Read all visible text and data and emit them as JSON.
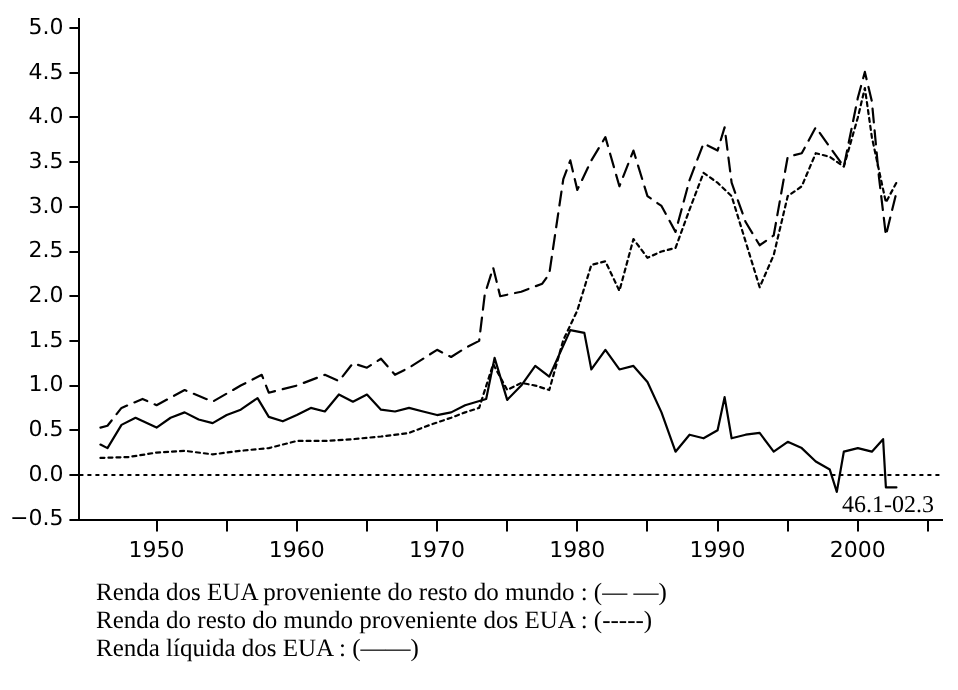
{
  "chart_data": {
    "type": "line",
    "xlim": [
      1944.5,
      2006
    ],
    "ylim": [
      -0.5,
      5.1
    ],
    "xticks": [
      1950,
      {
        "value": 1955,
        "label": null
      },
      1960,
      {
        "value": 1965,
        "label": null
      },
      1970,
      {
        "value": 1975,
        "label": null
      },
      1980,
      {
        "value": 1985,
        "label": null
      },
      1990,
      {
        "value": 1995,
        "label": null
      },
      2000,
      {
        "value": 2005,
        "label": null
      }
    ],
    "yticks": [
      {
        "value": -0.5,
        "label": "−0.5"
      },
      {
        "value": 0,
        "label": "0.0"
      },
      {
        "value": 0.5,
        "label": "0.5"
      },
      {
        "value": 1,
        "label": "1.0"
      },
      {
        "value": 1.5,
        "label": "1.5"
      },
      {
        "value": 2,
        "label": "2.0"
      },
      {
        "value": 2.5,
        "label": "2.5"
      },
      {
        "value": 3,
        "label": "3.0"
      },
      {
        "value": 3.5,
        "label": "3.5"
      },
      {
        "value": 4,
        "label": "4.0"
      },
      {
        "value": 4.5,
        "label": "4.5"
      },
      {
        "value": 5,
        "label": "5.0"
      }
    ],
    "grid": false,
    "legend": false,
    "marker": "none",
    "series": [
      {
        "color": "#000000",
        "line_style": "dashed",
        "x": [
          1946,
          1946.5,
          1947.5,
          1949,
          1950,
          1952,
          1954,
          1956,
          1957.5,
          1958,
          1960,
          1962,
          1963,
          1964,
          1965,
          1966,
          1967,
          1968,
          1970,
          1971,
          1972,
          1973,
          1973.4,
          1974,
          1974.5,
          1976,
          1977.5,
          1978,
          1979,
          1979.5,
          1980,
          1981,
          1982,
          1983,
          1984,
          1985,
          1986,
          1987,
          1988,
          1989,
          1990,
          1990.5,
          1991,
          1992,
          1993,
          1994,
          1995,
          1996,
          1997,
          1998,
          1999,
          2000,
          2000.5,
          2001,
          2001.5,
          2002,
          2002.75
        ],
        "values": [
          0.53,
          0.55,
          0.75,
          0.85,
          0.78,
          0.95,
          0.82,
          1.0,
          1.12,
          0.92,
          1.0,
          1.12,
          1.05,
          1.25,
          1.2,
          1.3,
          1.12,
          1.2,
          1.4,
          1.32,
          1.42,
          1.5,
          2.02,
          2.32,
          2.0,
          2.05,
          2.14,
          2.25,
          3.31,
          3.52,
          3.19,
          3.52,
          3.78,
          3.23,
          3.63,
          3.12,
          3.01,
          2.72,
          3.3,
          3.71,
          3.63,
          3.89,
          3.27,
          2.83,
          2.57,
          2.68,
          3.56,
          3.6,
          3.89,
          3.67,
          3.45,
          4.22,
          4.51,
          4.18,
          3.34,
          2.68,
          3.16
        ]
      },
      {
        "color": "#000000",
        "line_style": "dotted",
        "x": [
          1946,
          1948,
          1950,
          1952,
          1954,
          1956,
          1958,
          1960,
          1962,
          1964,
          1966,
          1968,
          1969.5,
          1971,
          1972,
          1973,
          1974,
          1975,
          1976,
          1977,
          1978,
          1979,
          1980,
          1981,
          1982,
          1983,
          1984,
          1985,
          1986,
          1987,
          1988,
          1989,
          1990,
          1991,
          1992,
          1993,
          1994,
          1995,
          1996,
          1997,
          1998,
          1999,
          2000,
          2000.5,
          2001,
          2002,
          2002.75
        ],
        "values": [
          0.19,
          0.2,
          0.25,
          0.27,
          0.23,
          0.27,
          0.3,
          0.38,
          0.38,
          0.4,
          0.43,
          0.47,
          0.56,
          0.64,
          0.7,
          0.75,
          1.24,
          0.95,
          1.03,
          1.0,
          0.95,
          1.51,
          1.84,
          2.35,
          2.39,
          2.06,
          2.64,
          2.43,
          2.5,
          2.54,
          2.97,
          3.38,
          3.27,
          3.12,
          2.61,
          2.1,
          2.46,
          3.12,
          3.23,
          3.6,
          3.56,
          3.45,
          4.0,
          4.33,
          3.78,
          3.05,
          3.27
        ]
      },
      {
        "color": "#000000",
        "line_style": "solid",
        "x": [
          1946,
          1946.5,
          1947.5,
          1948.5,
          1950,
          1951,
          1952,
          1953,
          1954,
          1955,
          1956,
          1957.2,
          1958,
          1959,
          1960,
          1961,
          1962,
          1963,
          1964,
          1965,
          1966,
          1967,
          1968,
          1969,
          1970,
          1971,
          1972,
          1973.5,
          1974.1,
          1975,
          1976,
          1977,
          1978,
          1979.5,
          1980.5,
          1981,
          1982,
          1983,
          1984,
          1985,
          1986,
          1987,
          1988,
          1989,
          1990,
          1990.5,
          1991,
          1992,
          1993,
          1994,
          1995,
          1996,
          1997,
          1998,
          1998.5,
          1999,
          2000,
          2001,
          2001.8,
          2002,
          2002.75
        ],
        "values": [
          0.34,
          0.3,
          0.56,
          0.64,
          0.53,
          0.64,
          0.7,
          0.62,
          0.58,
          0.67,
          0.73,
          0.86,
          0.65,
          0.6,
          0.67,
          0.75,
          0.71,
          0.9,
          0.82,
          0.9,
          0.73,
          0.71,
          0.75,
          0.71,
          0.67,
          0.7,
          0.78,
          0.85,
          1.31,
          0.84,
          1.0,
          1.22,
          1.1,
          1.62,
          1.59,
          1.18,
          1.4,
          1.18,
          1.22,
          1.04,
          0.7,
          0.26,
          0.45,
          0.41,
          0.5,
          0.87,
          0.41,
          0.45,
          0.47,
          0.26,
          0.37,
          0.3,
          0.15,
          0.06,
          -0.19,
          0.26,
          0.3,
          0.26,
          0.4,
          -0.14,
          -0.14
        ]
      }
    ],
    "ref_lines": [
      {
        "axis": "y",
        "value": 0,
        "line_style": "dotted",
        "color": "#000000"
      }
    ],
    "annotations": [
      "46.1-02.3",
      "Renda dos EUA proveniente do resto do mundo : (— —)",
      "Renda do resto do mundo proveniente dos EUA : (-----)",
      "Renda líquida dos EUA : (——)"
    ]
  }
}
